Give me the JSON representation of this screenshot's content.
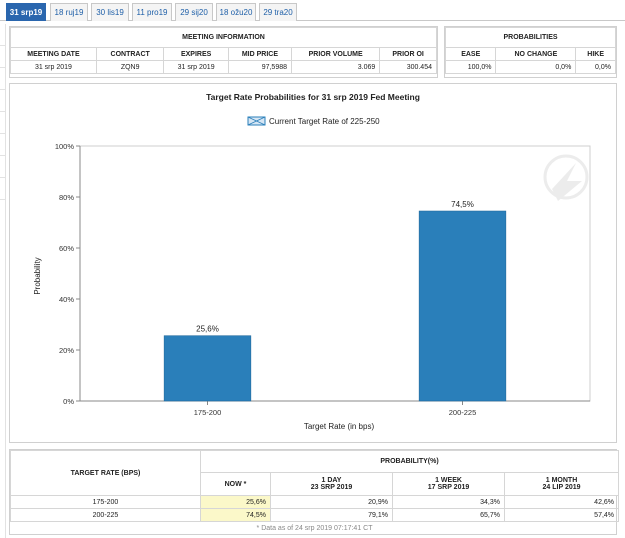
{
  "tabs": [
    "31 srp19",
    "18 ruj19",
    "30 lis19",
    "11 pro19",
    "29 sij20",
    "18 ožu20",
    "29 tra20"
  ],
  "meeting_info": {
    "title": "MEETING INFORMATION",
    "headers": [
      "MEETING DATE",
      "CONTRACT",
      "EXPIRES",
      "MID PRICE",
      "PRIOR VOLUME",
      "PRIOR OI"
    ],
    "values": [
      "31 srp 2019",
      "ZQN9",
      "31 srp 2019",
      "97,5988",
      "3.069",
      "300.454"
    ]
  },
  "probabilities_box": {
    "title": "PROBABILITIES",
    "headers": [
      "EASE",
      "NO CHANGE",
      "HIKE"
    ],
    "values": [
      "100,0%",
      "0,0%",
      "0,0%"
    ]
  },
  "chart_data": {
    "type": "bar",
    "title": "Target Rate Probabilities for 31 srp 2019 Fed Meeting",
    "legend": "Current Target Rate of 225-250",
    "legend_position": "top-center",
    "categories": [
      "175-200",
      "200-225"
    ],
    "values": [
      25.6,
      74.5
    ],
    "data_labels": [
      "25,6%",
      "74,5%"
    ],
    "xlabel": "Target Rate (in bps)",
    "ylabel": "Probability",
    "ylim": [
      0,
      100
    ],
    "yticks": [
      "0%",
      "20%",
      "40%",
      "60%",
      "80%",
      "100%"
    ],
    "grid": false,
    "bar_color": "#2a7fba"
  },
  "prob_table": {
    "col_target": "TARGET RATE (BPS)",
    "col_group": "PROBABILITY(%)",
    "sub_headers": [
      {
        "line1": "NOW *",
        "line2": ""
      },
      {
        "line1": "1 DAY",
        "line2": "23 SRP 2019"
      },
      {
        "line1": "1 WEEK",
        "line2": "17 SRP 2019"
      },
      {
        "line1": "1 MONTH",
        "line2": "24 LIP 2019"
      }
    ],
    "rows": [
      {
        "rate": "175-200",
        "now": "25,6%",
        "day": "20,9%",
        "week": "34,3%",
        "month": "42,6%"
      },
      {
        "rate": "200-225",
        "now": "74,5%",
        "day": "79,1%",
        "week": "65,7%",
        "month": "57,4%"
      }
    ],
    "footnote": "* Data as of 24 srp 2019 07:17:41 CT"
  }
}
